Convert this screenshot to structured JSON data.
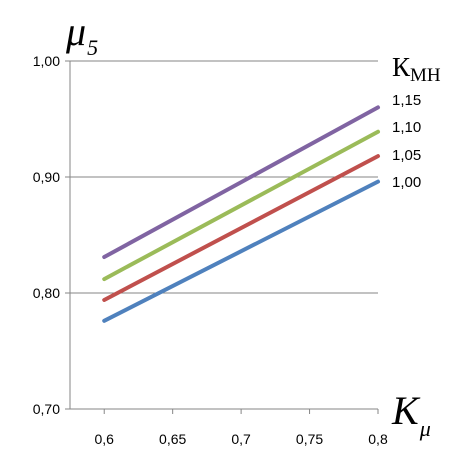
{
  "chart_data": {
    "type": "line",
    "x_ticks": [
      "0,6",
      "0,65",
      "0,7",
      "0,75",
      "0,8"
    ],
    "y_ticks": [
      "0,70",
      "0,80",
      "0,90",
      "1,00"
    ],
    "xlim": [
      0.575,
      0.8
    ],
    "ylim": [
      0.7,
      1.0
    ],
    "grid": "horizontal",
    "y_axis_title": {
      "symbol": "μ",
      "subscript": "5"
    },
    "x_axis_title": {
      "symbol": "K",
      "subscript": "μ"
    },
    "legend_title": {
      "symbol": "К",
      "subscript": "МН"
    },
    "x": [
      0.6,
      0.8
    ],
    "series": [
      {
        "name": "1,15",
        "color": "#8064A2",
        "values": [
          0.831,
          0.96
        ]
      },
      {
        "name": "1,10",
        "color": "#9BBB59",
        "values": [
          0.812,
          0.939
        ]
      },
      {
        "name": "1,05",
        "color": "#C0504D",
        "values": [
          0.794,
          0.918
        ]
      },
      {
        "name": "1,00",
        "color": "#4F81BD",
        "values": [
          0.776,
          0.896
        ]
      }
    ]
  }
}
